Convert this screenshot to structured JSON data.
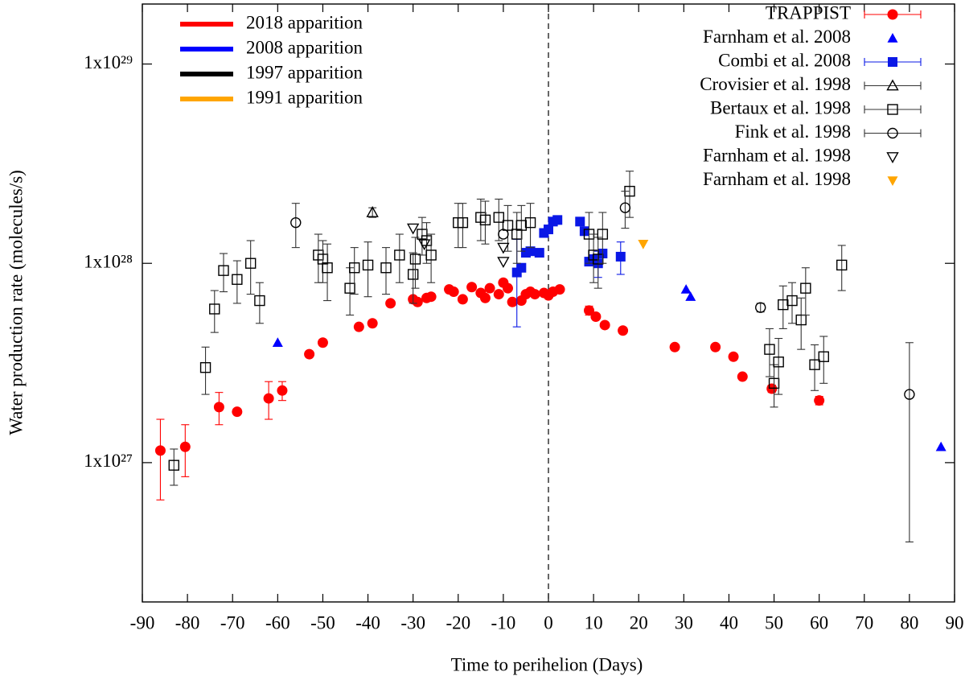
{
  "chart_data": {
    "type": "scatter",
    "xlabel": "Time to perihelion (Days)",
    "ylabel": "Water production rate (molecules/s)",
    "xlim": [
      -90,
      90
    ],
    "xticks": [
      -90,
      -80,
      -70,
      -60,
      -50,
      -40,
      -30,
      -20,
      -10,
      0,
      10,
      20,
      30,
      40,
      50,
      60,
      70,
      80,
      90
    ],
    "ylim": [
      2e+26,
      2e+29
    ],
    "log_y": true,
    "yticks": [
      {
        "value": 1e+27,
        "label": "1x10²⁷"
      },
      {
        "value": 1e+28,
        "label": "1x10²⁸"
      },
      {
        "value": 1e+29,
        "label": "1x10²⁹"
      }
    ],
    "vertical_line": 0,
    "apparitions": [
      {
        "name": "2018 apparition",
        "color": "#ff0000"
      },
      {
        "name": "2008 apparition",
        "color": "#0000ff"
      },
      {
        "name": "1997 apparition",
        "color": "#000000"
      },
      {
        "name": "1991 apparition",
        "color": "#ffa500"
      }
    ],
    "series": [
      {
        "name": "TRAPPIST",
        "color": "#ff0000",
        "marker": "circle",
        "x": [
          -86,
          -80.5,
          -73,
          -69,
          -62,
          -59,
          -53,
          -50,
          -42,
          -39,
          -35,
          -30,
          -29,
          -27,
          -26,
          -22,
          -21,
          -19,
          -17,
          -15,
          -14,
          -13,
          -11,
          -10,
          -9,
          -8,
          -6,
          -5,
          -4,
          -3,
          -1,
          0,
          1,
          2.5,
          9,
          10.5,
          12.5,
          16.5,
          28,
          37,
          41,
          43,
          49.5,
          60
        ],
        "values": [
          1.15e+27,
          1.2e+27,
          1.9e+27,
          1.8e+27,
          2.1e+27,
          2.3e+27,
          3.5e+27,
          4e+27,
          4.8e+27,
          5e+27,
          6.3e+27,
          6.6e+27,
          6.4e+27,
          6.7e+27,
          6.8e+27,
          7.4e+27,
          7.2e+27,
          6.6e+27,
          7.6e+27,
          7.1e+27,
          6.7e+27,
          7.5e+27,
          7e+27,
          8e+27,
          7.5e+27,
          6.4e+27,
          6.5e+27,
          7e+27,
          7.2e+27,
          7e+27,
          7.1e+27,
          6.9e+27,
          7.2e+27,
          7.4e+27,
          5.8e+27,
          5.4e+27,
          4.9e+27,
          4.6e+27,
          3.8e+27,
          3.8e+27,
          3.4e+27,
          2.7e+27,
          2.35e+27,
          2.05e+27
        ],
        "errors": [
          5e+26,
          3.5e+26,
          3.5e+26,
          null,
          4.5e+26,
          2.5e+26,
          null,
          null,
          null,
          null,
          null,
          null,
          null,
          null,
          null,
          null,
          null,
          null,
          null,
          null,
          null,
          null,
          null,
          null,
          null,
          null,
          null,
          null,
          null,
          null,
          null,
          null,
          null,
          null,
          3e+26,
          null,
          null,
          null,
          null,
          null,
          null,
          null,
          1e+26,
          1e+26
        ]
      },
      {
        "name": "Farnham et al. 2008",
        "color": "#0000ff",
        "marker": "triangle-up",
        "x": [
          -60,
          30.5,
          31.5,
          87
        ],
        "values": [
          4e+27,
          7.4e+27,
          6.8e+27,
          1.2e+27
        ]
      },
      {
        "name": "Combi et al. 2008",
        "color": "#0a18e6",
        "marker": "square",
        "x": [
          -7,
          -6,
          -5,
          -4,
          -2,
          -1,
          0,
          1,
          2,
          7,
          8,
          9,
          10,
          11,
          12,
          16
        ],
        "values": [
          9e+27,
          9.5e+27,
          1.13e+28,
          1.15e+28,
          1.13e+28,
          1.42e+28,
          1.48e+28,
          1.62e+28,
          1.65e+28,
          1.62e+28,
          1.45e+28,
          1.02e+28,
          1.05e+28,
          1e+28,
          1.12e+28,
          1.08e+28
        ],
        "errors": [
          4.2e+27,
          null,
          null,
          null,
          null,
          null,
          null,
          null,
          null,
          null,
          null,
          null,
          null,
          1.5e+27,
          null,
          2e+27
        ]
      },
      {
        "name": "Crovisier et al. 1998",
        "color": "#000000",
        "marker": "triangle-up-open",
        "x": [
          -39
        ],
        "values": [
          1.8e+28
        ],
        "errors": [
          1e+27
        ]
      },
      {
        "name": "Bertaux et al. 1998",
        "color": "#000000",
        "marker": "square-open",
        "x": [
          -83,
          -76,
          -74,
          -72,
          -69,
          -66,
          -64,
          -51,
          -50,
          -49,
          -44,
          -43,
          -40,
          -36,
          -33,
          -30,
          -29.5,
          -28,
          -27,
          -26,
          -20,
          -19,
          -15,
          -14,
          -11,
          -9,
          -7,
          -6,
          -4,
          9,
          10,
          11,
          12,
          18,
          49,
          50,
          51,
          52,
          54,
          56,
          57,
          59,
          61,
          65
        ],
        "values": [
          9.7e+26,
          3e+27,
          5.9e+27,
          9.2e+27,
          8.3e+27,
          1e+28,
          6.5e+27,
          1.1e+28,
          1.05e+28,
          9.5e+27,
          7.5e+27,
          9.5e+27,
          9.8e+27,
          9.5e+27,
          1.1e+28,
          8.8e+27,
          1.05e+28,
          1.4e+28,
          1.3e+28,
          1.1e+28,
          1.6e+28,
          1.6e+28,
          1.7e+28,
          1.65e+28,
          1.7e+28,
          1.55e+28,
          1.4e+28,
          1.55e+28,
          1.6e+28,
          1.4e+28,
          1.1e+28,
          1.05e+28,
          1.4e+28,
          2.3e+28,
          3.7e+27,
          2.5e+27,
          3.2e+27,
          6.2e+27,
          6.5e+27,
          5.2e+27,
          7.5e+27,
          3.1e+27,
          3.4e+27,
          9.8e+27
        ],
        "errors": [
          2e+26,
          8e+26,
          1.4e+27,
          2e+27,
          2e+27,
          3e+27,
          1.5e+27,
          3e+27,
          2.5e+27,
          3e+27,
          2e+27,
          2.5e+27,
          3e+27,
          2.5e+27,
          3e+27,
          2.5e+27,
          3e+27,
          3e+27,
          3e+27,
          3e+27,
          4e+27,
          4e+27,
          4e+27,
          4e+27,
          4e+27,
          4e+27,
          4e+27,
          4e+27,
          4e+27,
          4e+27,
          3e+27,
          3e+27,
          4e+27,
          6e+27,
          1e+27,
          6e+26,
          1e+27,
          1.5e+27,
          1.5e+27,
          1.5e+27,
          2e+27,
          8e+26,
          9e+26,
          2.5e+27
        ]
      },
      {
        "name": "Fink et al. 1998",
        "color": "#000000",
        "marker": "circle-open",
        "x": [
          -56,
          -10,
          17,
          47,
          80
        ],
        "values": [
          1.6e+28,
          1.4e+28,
          1.9e+28,
          6e+27,
          2.2e+27
        ],
        "errors": [
          4e+27,
          null,
          4e+27,
          3e+26,
          1.8e+27
        ]
      },
      {
        "name": "Farnham et al. 1998",
        "color": "#000000",
        "marker": "triangle-down-open",
        "x": [
          -30,
          -27.5,
          -10,
          -10
        ],
        "values": [
          1.5e+28,
          1.25e+28,
          1.2e+28,
          1.02e+28
        ]
      },
      {
        "name": "Farnham et al. 1998",
        "color": "#ffa500",
        "marker": "triangle-down",
        "x": [
          21
        ],
        "values": [
          1.25e+28
        ]
      }
    ]
  }
}
